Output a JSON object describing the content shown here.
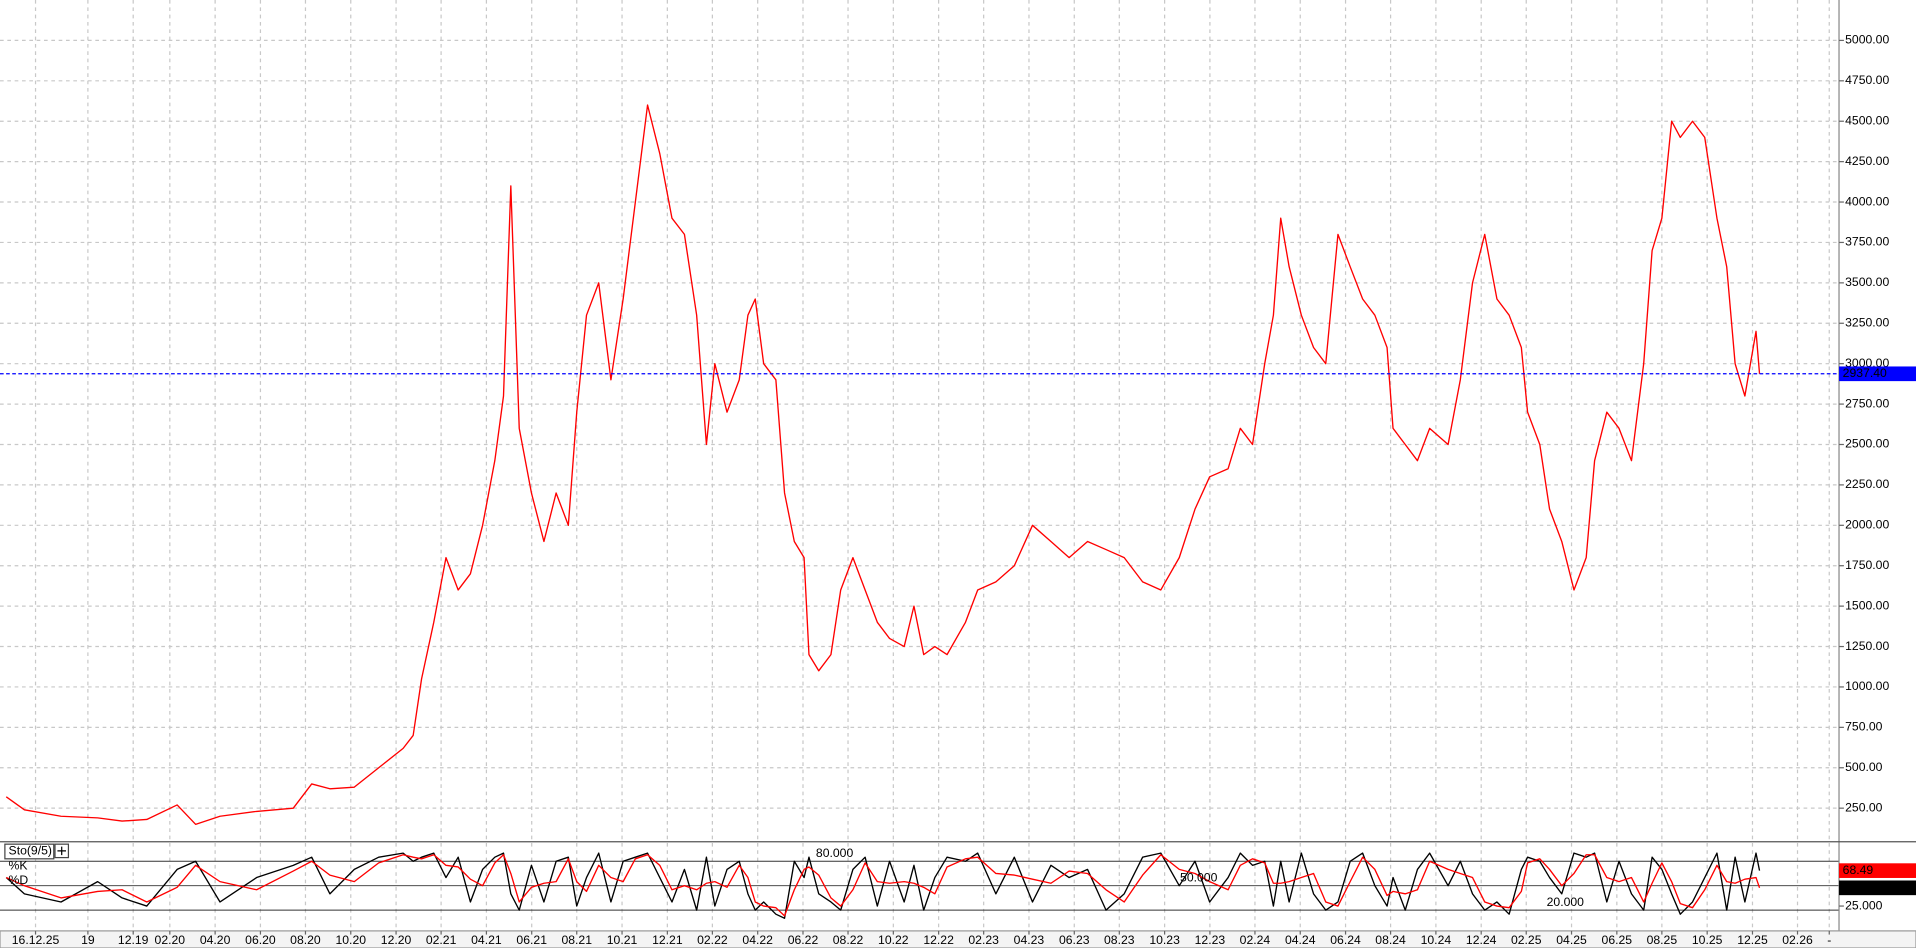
{
  "chart_data": [
    {
      "type": "line",
      "x": [
        2019.48,
        2019.547,
        2019.682,
        2019.817,
        2019.907,
        2019.998,
        2020.11,
        2020.178,
        2020.268,
        2020.403,
        2020.538,
        2020.606,
        2020.673,
        2020.763,
        2020.853,
        2020.943,
        2020.98,
        2021.011,
        2021.056,
        2021.101,
        2021.146,
        2021.191,
        2021.236,
        2021.281,
        2021.313,
        2021.34,
        2021.371,
        2021.416,
        2021.462,
        2021.507,
        2021.552,
        2021.583,
        2021.619,
        2021.664,
        2021.709,
        2021.754,
        2021.799,
        2021.844,
        2021.889,
        2021.934,
        2021.98,
        2022.025,
        2022.061,
        2022.092,
        2022.137,
        2022.182,
        2022.214,
        2022.241,
        2022.272,
        2022.317,
        2022.349,
        2022.385,
        2022.421,
        2022.439,
        2022.475,
        2022.52,
        2022.556,
        2022.601,
        2022.646,
        2022.691,
        2022.736,
        2022.79,
        2022.826,
        2022.862,
        2022.903,
        2022.948,
        2023.016,
        2023.061,
        2023.128,
        2023.196,
        2023.263,
        2023.331,
        2023.398,
        2023.466,
        2023.534,
        2023.601,
        2023.669,
        2023.736,
        2023.804,
        2023.862,
        2023.916,
        2023.984,
        2024.029,
        2024.074,
        2024.119,
        2024.151,
        2024.178,
        2024.209,
        2024.254,
        2024.299,
        2024.344,
        2024.389,
        2024.434,
        2024.48,
        2024.525,
        2024.57,
        2024.592,
        2024.637,
        2024.682,
        2024.727,
        2024.795,
        2024.84,
        2024.885,
        2024.93,
        2024.975,
        2025.02,
        2025.065,
        2025.088,
        2025.133,
        2025.169,
        2025.214,
        2025.259,
        2025.304,
        2025.335,
        2025.38,
        2025.425,
        2025.471,
        2025.516,
        2025.547,
        2025.583,
        2025.619,
        2025.651,
        2025.696,
        2025.741,
        2025.786,
        2025.822,
        2025.853,
        2025.889,
        2025.93,
        2025.943
      ],
      "values": [
        320,
        240,
        200,
        190,
        170,
        180,
        270,
        150,
        200,
        230,
        250,
        400,
        370,
        380,
        500,
        620,
        700,
        1050,
        1400,
        1800,
        1600,
        1700,
        2000,
        2400,
        2800,
        4100,
        2600,
        2200,
        1900,
        2200,
        2000,
        2700,
        3300,
        3500,
        2900,
        3400,
        4000,
        4600,
        4300,
        3900,
        3800,
        3300,
        2500,
        3000,
        2700,
        2900,
        3300,
        3400,
        3000,
        2900,
        2200,
        1900,
        1800,
        1200,
        1100,
        1200,
        1600,
        1800,
        1600,
        1400,
        1300,
        1250,
        1500,
        1200,
        1250,
        1200,
        1400,
        1600,
        1650,
        1750,
        2000,
        1900,
        1800,
        1900,
        1850,
        1800,
        1650,
        1600,
        1800,
        2100,
        2300,
        2350,
        2600,
        2500,
        3000,
        3300,
        3900,
        3600,
        3300,
        3100,
        3000,
        3800,
        3600,
        3400,
        3300,
        3100,
        2600,
        2500,
        2400,
        2600,
        2500,
        2900,
        3500,
        3800,
        3400,
        3300,
        3100,
        2700,
        2500,
        2100,
        1900,
        1600,
        1800,
        2400,
        2700,
        2600,
        2400,
        3000,
        3700,
        3900,
        4500,
        4400,
        4500,
        4400,
        3900,
        3600,
        3000,
        2800,
        3200,
        2937.4
      ],
      "color": "#ff0000",
      "xlim": [
        2019.457,
        2026.236
      ],
      "ylim": [
        50,
        5250
      ],
      "xticks": [
        {
          "value": 2019.588,
          "label": "16.12.25"
        },
        {
          "value": 2019.781,
          "label": "19"
        },
        {
          "value": 2019.948,
          "label": "12.19"
        },
        {
          "value": 2020.083,
          "label": "02.20"
        },
        {
          "value": 2020.25,
          "label": "04.20"
        },
        {
          "value": 2020.417,
          "label": "06.20"
        },
        {
          "value": 2020.583,
          "label": "08.20"
        },
        {
          "value": 2020.75,
          "label": "10.20"
        },
        {
          "value": 2020.917,
          "label": "12.20"
        },
        {
          "value": 2021.083,
          "label": "02.21"
        },
        {
          "value": 2021.25,
          "label": "04.21"
        },
        {
          "value": 2021.417,
          "label": "06.21"
        },
        {
          "value": 2021.583,
          "label": "08.21"
        },
        {
          "value": 2021.75,
          "label": "10.21"
        },
        {
          "value": 2021.917,
          "label": "12.21"
        },
        {
          "value": 2022.083,
          "label": "02.22"
        },
        {
          "value": 2022.25,
          "label": "04.22"
        },
        {
          "value": 2022.417,
          "label": "06.22"
        },
        {
          "value": 2022.583,
          "label": "08.22"
        },
        {
          "value": 2022.75,
          "label": "10.22"
        },
        {
          "value": 2022.917,
          "label": "12.22"
        },
        {
          "value": 2023.083,
          "label": "02.23"
        },
        {
          "value": 2023.25,
          "label": "04.23"
        },
        {
          "value": 2023.417,
          "label": "06.23"
        },
        {
          "value": 2023.583,
          "label": "08.23"
        },
        {
          "value": 2023.75,
          "label": "10.23"
        },
        {
          "value": 2023.917,
          "label": "12.23"
        },
        {
          "value": 2024.083,
          "label": "02.24"
        },
        {
          "value": 2024.25,
          "label": "04.24"
        },
        {
          "value": 2024.417,
          "label": "06.24"
        },
        {
          "value": 2024.583,
          "label": "08.24"
        },
        {
          "value": 2024.75,
          "label": "10.24"
        },
        {
          "value": 2024.917,
          "label": "12.24"
        },
        {
          "value": 2025.083,
          "label": "02.25"
        },
        {
          "value": 2025.25,
          "label": "04.25"
        },
        {
          "value": 2025.417,
          "label": "06.25"
        },
        {
          "value": 2025.583,
          "label": "08.25"
        },
        {
          "value": 2025.75,
          "label": "10.25"
        },
        {
          "value": 2025.917,
          "label": "12.25"
        },
        {
          "value": 2026.083,
          "label": "02.26"
        },
        {
          "value": 2026.2,
          "label": "-"
        }
      ],
      "yticks": [
        {
          "value": 250,
          "label": "250.00"
        },
        {
          "value": 500,
          "label": "500.00"
        },
        {
          "value": 750,
          "label": "750.00"
        },
        {
          "value": 1000,
          "label": "1000.00"
        },
        {
          "value": 1250,
          "label": "1250.00"
        },
        {
          "value": 1500,
          "label": "1500.00"
        },
        {
          "value": 1750,
          "label": "1750.00"
        },
        {
          "value": 2000,
          "label": "2000.00"
        },
        {
          "value": 2250,
          "label": "2250.00"
        },
        {
          "value": 2500,
          "label": "2500.00"
        },
        {
          "value": 2750,
          "label": "2750.00"
        },
        {
          "value": 3000,
          "label": "3000.00"
        },
        {
          "value": 3250,
          "label": "3250.00"
        },
        {
          "value": 3500,
          "label": "3500.00"
        },
        {
          "value": 3750,
          "label": "3750.00"
        },
        {
          "value": 4000,
          "label": "4000.00"
        },
        {
          "value": 4250,
          "label": "4250.00"
        },
        {
          "value": 4500,
          "label": "4500.00"
        },
        {
          "value": 4750,
          "label": "4750.00"
        },
        {
          "value": 5000,
          "label": "5000.00"
        }
      ],
      "grid": true,
      "price_line": {
        "value": 2937.4,
        "label": "2937.40",
        "color": "#0000ff"
      }
    },
    {
      "type": "line",
      "title": "Sto(9/5)",
      "x": [
        2019.48,
        2019.547,
        2019.682,
        2019.817,
        2019.907,
        2019.998,
        2020.11,
        2020.178,
        2020.268,
        2020.403,
        2020.538,
        2020.606,
        2020.673,
        2020.763,
        2020.853,
        2020.943,
        2020.98,
        2021.011,
        2021.056,
        2021.101,
        2021.146,
        2021.191,
        2021.236,
        2021.281,
        2021.313,
        2021.34,
        2021.371,
        2021.416,
        2021.462,
        2021.507,
        2021.552,
        2021.583,
        2021.619,
        2021.664,
        2021.709,
        2021.754,
        2021.799,
        2021.844,
        2021.889,
        2021.934,
        2021.98,
        2022.025,
        2022.061,
        2022.092,
        2022.137,
        2022.182,
        2022.214,
        2022.241,
        2022.272,
        2022.317,
        2022.349,
        2022.385,
        2022.421,
        2022.439,
        2022.475,
        2022.52,
        2022.556,
        2022.601,
        2022.646,
        2022.691,
        2022.736,
        2022.79,
        2022.826,
        2022.862,
        2022.903,
        2022.948,
        2023.016,
        2023.061,
        2023.128,
        2023.196,
        2023.263,
        2023.331,
        2023.398,
        2023.466,
        2023.534,
        2023.601,
        2023.669,
        2023.736,
        2023.804,
        2023.862,
        2023.916,
        2023.984,
        2024.029,
        2024.074,
        2024.119,
        2024.151,
        2024.178,
        2024.209,
        2024.254,
        2024.299,
        2024.344,
        2024.389,
        2024.434,
        2024.48,
        2024.525,
        2024.57,
        2024.592,
        2024.637,
        2024.682,
        2024.727,
        2024.795,
        2024.84,
        2024.885,
        2024.93,
        2024.975,
        2025.02,
        2025.065,
        2025.088,
        2025.133,
        2025.169,
        2025.214,
        2025.259,
        2025.304,
        2025.335,
        2025.38,
        2025.425,
        2025.471,
        2025.516,
        2025.547,
        2025.583,
        2025.619,
        2025.651,
        2025.696,
        2025.741,
        2025.786,
        2025.822,
        2025.853,
        2025.889,
        2025.93,
        2025.943
      ],
      "xlim": [
        2019.457,
        2026.236
      ],
      "ylim": [
        -2.5,
        102.5
      ],
      "yticks": [
        {
          "value": 25,
          "label": "25.000"
        }
      ],
      "levels": [
        {
          "value": 80,
          "label": "80.000"
        },
        {
          "value": 50,
          "label": "50.000"
        },
        {
          "value": 20,
          "label": "20.000"
        }
      ],
      "series": [
        {
          "name": "%K",
          "color": "#000000",
          "values": [
            60,
            40,
            30,
            55,
            35,
            25,
            70,
            80,
            30,
            60,
            75,
            85,
            40,
            70,
            85,
            90,
            80,
            85,
            90,
            60,
            85,
            30,
            70,
            85,
            90,
            40,
            20,
            75,
            30,
            80,
            85,
            25,
            60,
            90,
            30,
            80,
            85,
            90,
            60,
            30,
            70,
            20,
            85,
            25,
            70,
            80,
            40,
            20,
            30,
            15,
            10,
            80,
            60,
            85,
            40,
            30,
            20,
            70,
            85,
            25,
            80,
            30,
            75,
            20,
            60,
            85,
            80,
            90,
            40,
            85,
            30,
            75,
            60,
            70,
            20,
            40,
            85,
            90,
            50,
            80,
            30,
            60,
            90,
            75,
            80,
            25,
            80,
            30,
            90,
            40,
            20,
            30,
            80,
            90,
            50,
            25,
            60,
            20,
            70,
            90,
            50,
            80,
            40,
            20,
            30,
            15,
            70,
            85,
            80,
            60,
            40,
            90,
            85,
            90,
            30,
            80,
            40,
            20,
            85,
            70,
            40,
            15,
            30,
            60,
            90,
            20,
            85,
            30,
            90,
            68.49
          ]
        },
        {
          "name": "%D",
          "color": "#ff0000",
          "values": [
            60,
            50,
            35,
            43,
            45,
            30,
            48,
            75,
            55,
            45,
            68,
            80,
            63,
            55,
            78,
            88,
            85,
            83,
            88,
            75,
            73,
            58,
            50,
            78,
            88,
            65,
            30,
            48,
            53,
            55,
            83,
            55,
            43,
            75,
            60,
            55,
            83,
            88,
            75,
            45,
            50,
            45,
            53,
            55,
            48,
            75,
            60,
            30,
            25,
            23,
            13,
            45,
            70,
            73,
            63,
            35,
            25,
            45,
            78,
            55,
            53,
            55,
            53,
            48,
            40,
            73,
            83,
            85,
            65,
            63,
            58,
            53,
            68,
            65,
            45,
            30,
            63,
            88,
            70,
            65,
            55,
            45,
            75,
            83,
            78,
            53,
            53,
            55,
            60,
            65,
            30,
            25,
            55,
            85,
            70,
            38,
            43,
            40,
            45,
            80,
            70,
            65,
            60,
            30,
            25,
            23,
            43,
            78,
            83,
            70,
            50,
            65,
            88,
            88,
            60,
            55,
            60,
            30,
            53,
            78,
            55,
            28,
            23,
            45,
            75,
            55,
            53,
            58,
            60,
            47.386
          ]
        }
      ],
      "current": [
        {
          "value": 68.49,
          "label": "68.49",
          "color": "#ff0000"
        },
        {
          "value": 47.386,
          "label": "47.386",
          "color": "#000000"
        }
      ]
    }
  ]
}
